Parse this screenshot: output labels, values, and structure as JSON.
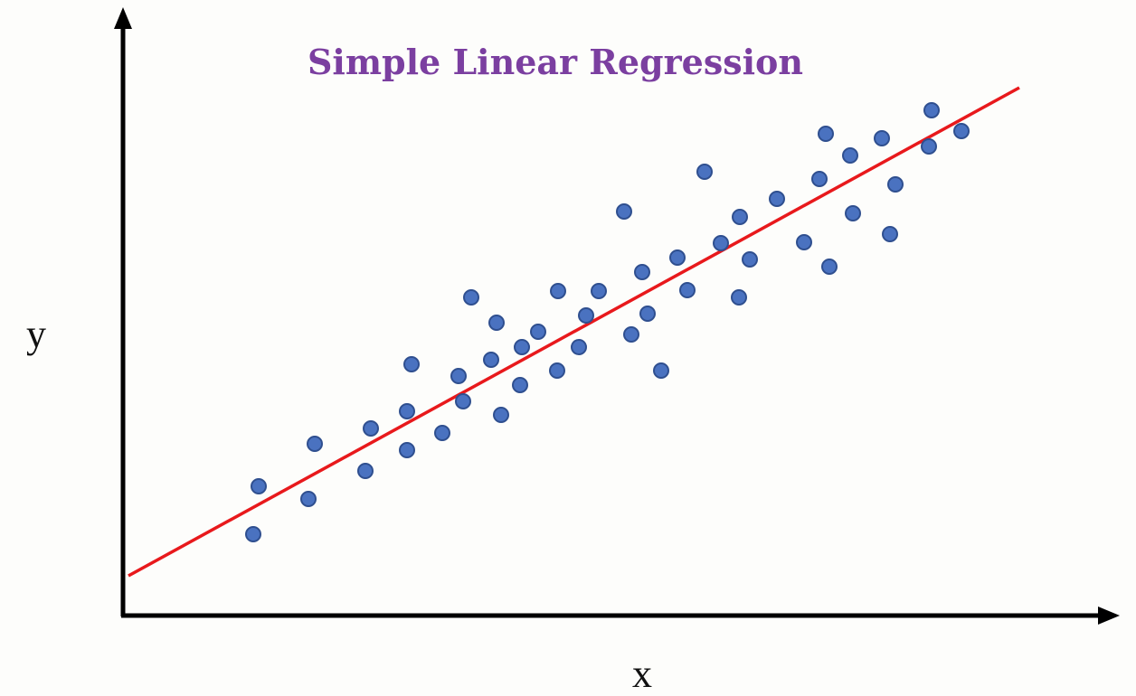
{
  "chart_data": {
    "type": "scatter",
    "title": "Simple Linear Regression",
    "xlabel": "x",
    "ylabel": "y",
    "xlim": [
      0,
      110
    ],
    "ylim": [
      0,
      66
    ],
    "series": [
      {
        "color": "#4a72c0",
        "x": [
          14.5,
          15.1,
          20.6,
          21.3,
          26.9,
          27.5,
          31.5,
          31.5,
          32.0,
          35.4,
          37.2,
          37.7,
          38.6,
          40.8,
          41.4,
          41.9,
          44.0,
          44.2,
          46.0,
          48.1,
          48.2,
          50.5,
          51.3,
          52.7,
          55.5,
          56.3,
          57.5,
          58.1,
          59.6,
          61.4,
          62.5,
          64.4,
          66.2,
          68.2,
          68.3,
          69.4,
          72.4,
          75.4,
          77.1,
          77.8,
          78.2,
          80.5,
          80.8,
          84.0,
          84.9,
          85.5,
          89.2,
          89.5,
          92.8
        ],
        "values": [
          8.9,
          14.2,
          12.8,
          18.9,
          15.9,
          20.6,
          18.2,
          22.5,
          27.7,
          20.1,
          26.4,
          23.6,
          35.1,
          28.2,
          32.3,
          22.1,
          25.4,
          29.6,
          31.3,
          27.0,
          35.8,
          29.6,
          33.1,
          35.8,
          44.6,
          31.0,
          37.9,
          33.3,
          27.0,
          39.5,
          35.9,
          49.0,
          41.1,
          35.1,
          44.0,
          39.3,
          46.0,
          41.2,
          48.2,
          53.2,
          38.5,
          50.8,
          44.4,
          52.7,
          42.1,
          47.6,
          51.8,
          55.8,
          53.5
        ]
      }
    ],
    "fit": {
      "color": "#e8191c",
      "x": [
        0.7,
        99.2
      ],
      "values": [
        4.3,
        58.3
      ]
    }
  }
}
